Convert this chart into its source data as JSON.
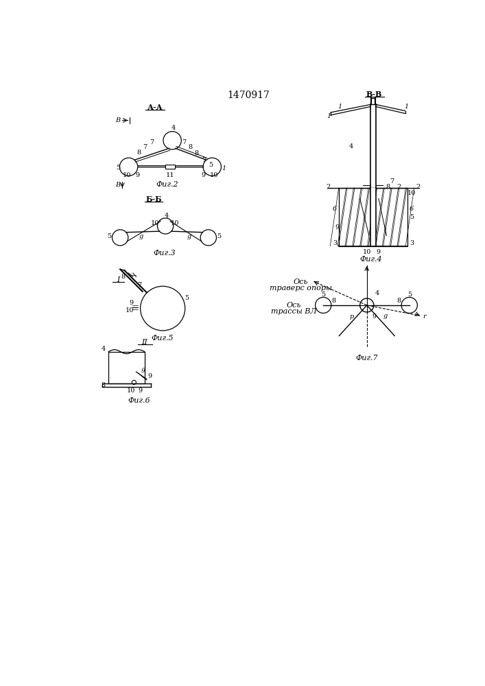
{
  "title": "1470917",
  "bg_color": "#ffffff",
  "line_color": "#000000",
  "fig2_caption": "Фиг.2",
  "fig3_caption": "Фиг.3",
  "fig4_caption": "Фиг.4",
  "fig5_caption": "Фиг.5",
  "fig6_caption": "Фиг.6",
  "fig7_caption": "Фиг.7",
  "fig2_label": "А-А",
  "fig3_label": "Б-Б",
  "fig4_label": "В-В",
  "arrow_label": "В"
}
